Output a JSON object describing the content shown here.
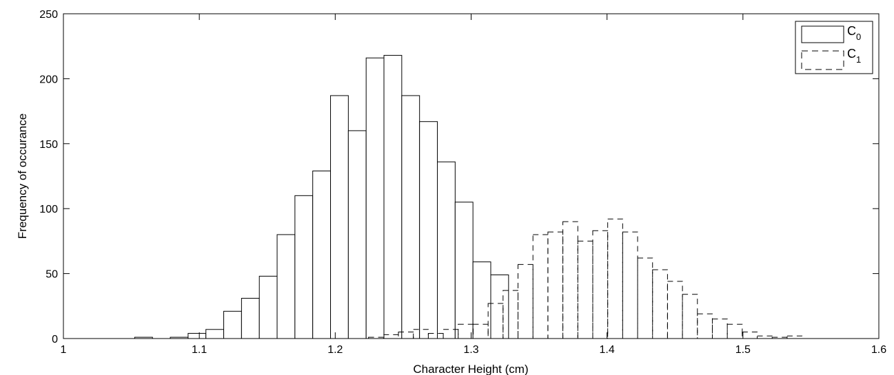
{
  "chart_data": {
    "type": "bar",
    "title": "",
    "xlabel": "Character Height (cm)",
    "ylabel": "Frequency of occurance",
    "xlim": [
      1,
      1.6
    ],
    "ylim": [
      0,
      250
    ],
    "xticks": [
      "1",
      "1.1",
      "1.2",
      "1.3",
      "1.4",
      "1.5",
      "1.6"
    ],
    "yticks": [
      "0",
      "50",
      "100",
      "150",
      "200",
      "250"
    ],
    "grid": false,
    "legend_position": "top-right",
    "series": [
      {
        "name": "C0",
        "legend_main": "C",
        "legend_sub": "0",
        "line_style": "solid",
        "bin_width": 0.0131,
        "bins": [
          {
            "x": 1.059,
            "y": 1
          },
          {
            "x": 1.0852,
            "y": 1
          },
          {
            "x": 1.0983,
            "y": 4
          },
          {
            "x": 1.1114,
            "y": 7
          },
          {
            "x": 1.1245,
            "y": 21
          },
          {
            "x": 1.1376,
            "y": 31
          },
          {
            "x": 1.1507,
            "y": 48
          },
          {
            "x": 1.1638,
            "y": 80
          },
          {
            "x": 1.1769,
            "y": 110
          },
          {
            "x": 1.19,
            "y": 129
          },
          {
            "x": 1.2031,
            "y": 187
          },
          {
            "x": 1.2162,
            "y": 160
          },
          {
            "x": 1.2293,
            "y": 216
          },
          {
            "x": 1.2424,
            "y": 218
          },
          {
            "x": 1.2555,
            "y": 187
          },
          {
            "x": 1.2686,
            "y": 167
          },
          {
            "x": 1.2817,
            "y": 136
          },
          {
            "x": 1.2948,
            "y": 105
          },
          {
            "x": 1.3079,
            "y": 59
          },
          {
            "x": 1.321,
            "y": 49
          }
        ]
      },
      {
        "name": "C1",
        "legend_main": "C",
        "legend_sub": "1",
        "line_style": "dashed",
        "bin_width": 0.011,
        "bins": [
          {
            "x": 1.23,
            "y": 1
          },
          {
            "x": 1.241,
            "y": 3
          },
          {
            "x": 1.252,
            "y": 5
          },
          {
            "x": 1.263,
            "y": 7
          },
          {
            "x": 1.274,
            "y": 4
          },
          {
            "x": 1.285,
            "y": 7
          },
          {
            "x": 1.296,
            "y": 11
          },
          {
            "x": 1.307,
            "y": 11
          },
          {
            "x": 1.318,
            "y": 27
          },
          {
            "x": 1.329,
            "y": 37
          },
          {
            "x": 1.34,
            "y": 57
          },
          {
            "x": 1.351,
            "y": 80
          },
          {
            "x": 1.362,
            "y": 82
          },
          {
            "x": 1.373,
            "y": 90
          },
          {
            "x": 1.384,
            "y": 75
          },
          {
            "x": 1.395,
            "y": 83
          },
          {
            "x": 1.406,
            "y": 92
          },
          {
            "x": 1.417,
            "y": 82
          },
          {
            "x": 1.428,
            "y": 62
          },
          {
            "x": 1.439,
            "y": 53
          },
          {
            "x": 1.45,
            "y": 44
          },
          {
            "x": 1.461,
            "y": 34
          },
          {
            "x": 1.472,
            "y": 19
          },
          {
            "x": 1.483,
            "y": 15
          },
          {
            "x": 1.494,
            "y": 11
          },
          {
            "x": 1.505,
            "y": 5
          },
          {
            "x": 1.516,
            "y": 2
          },
          {
            "x": 1.527,
            "y": 1
          },
          {
            "x": 1.538,
            "y": 2
          }
        ]
      }
    ]
  }
}
